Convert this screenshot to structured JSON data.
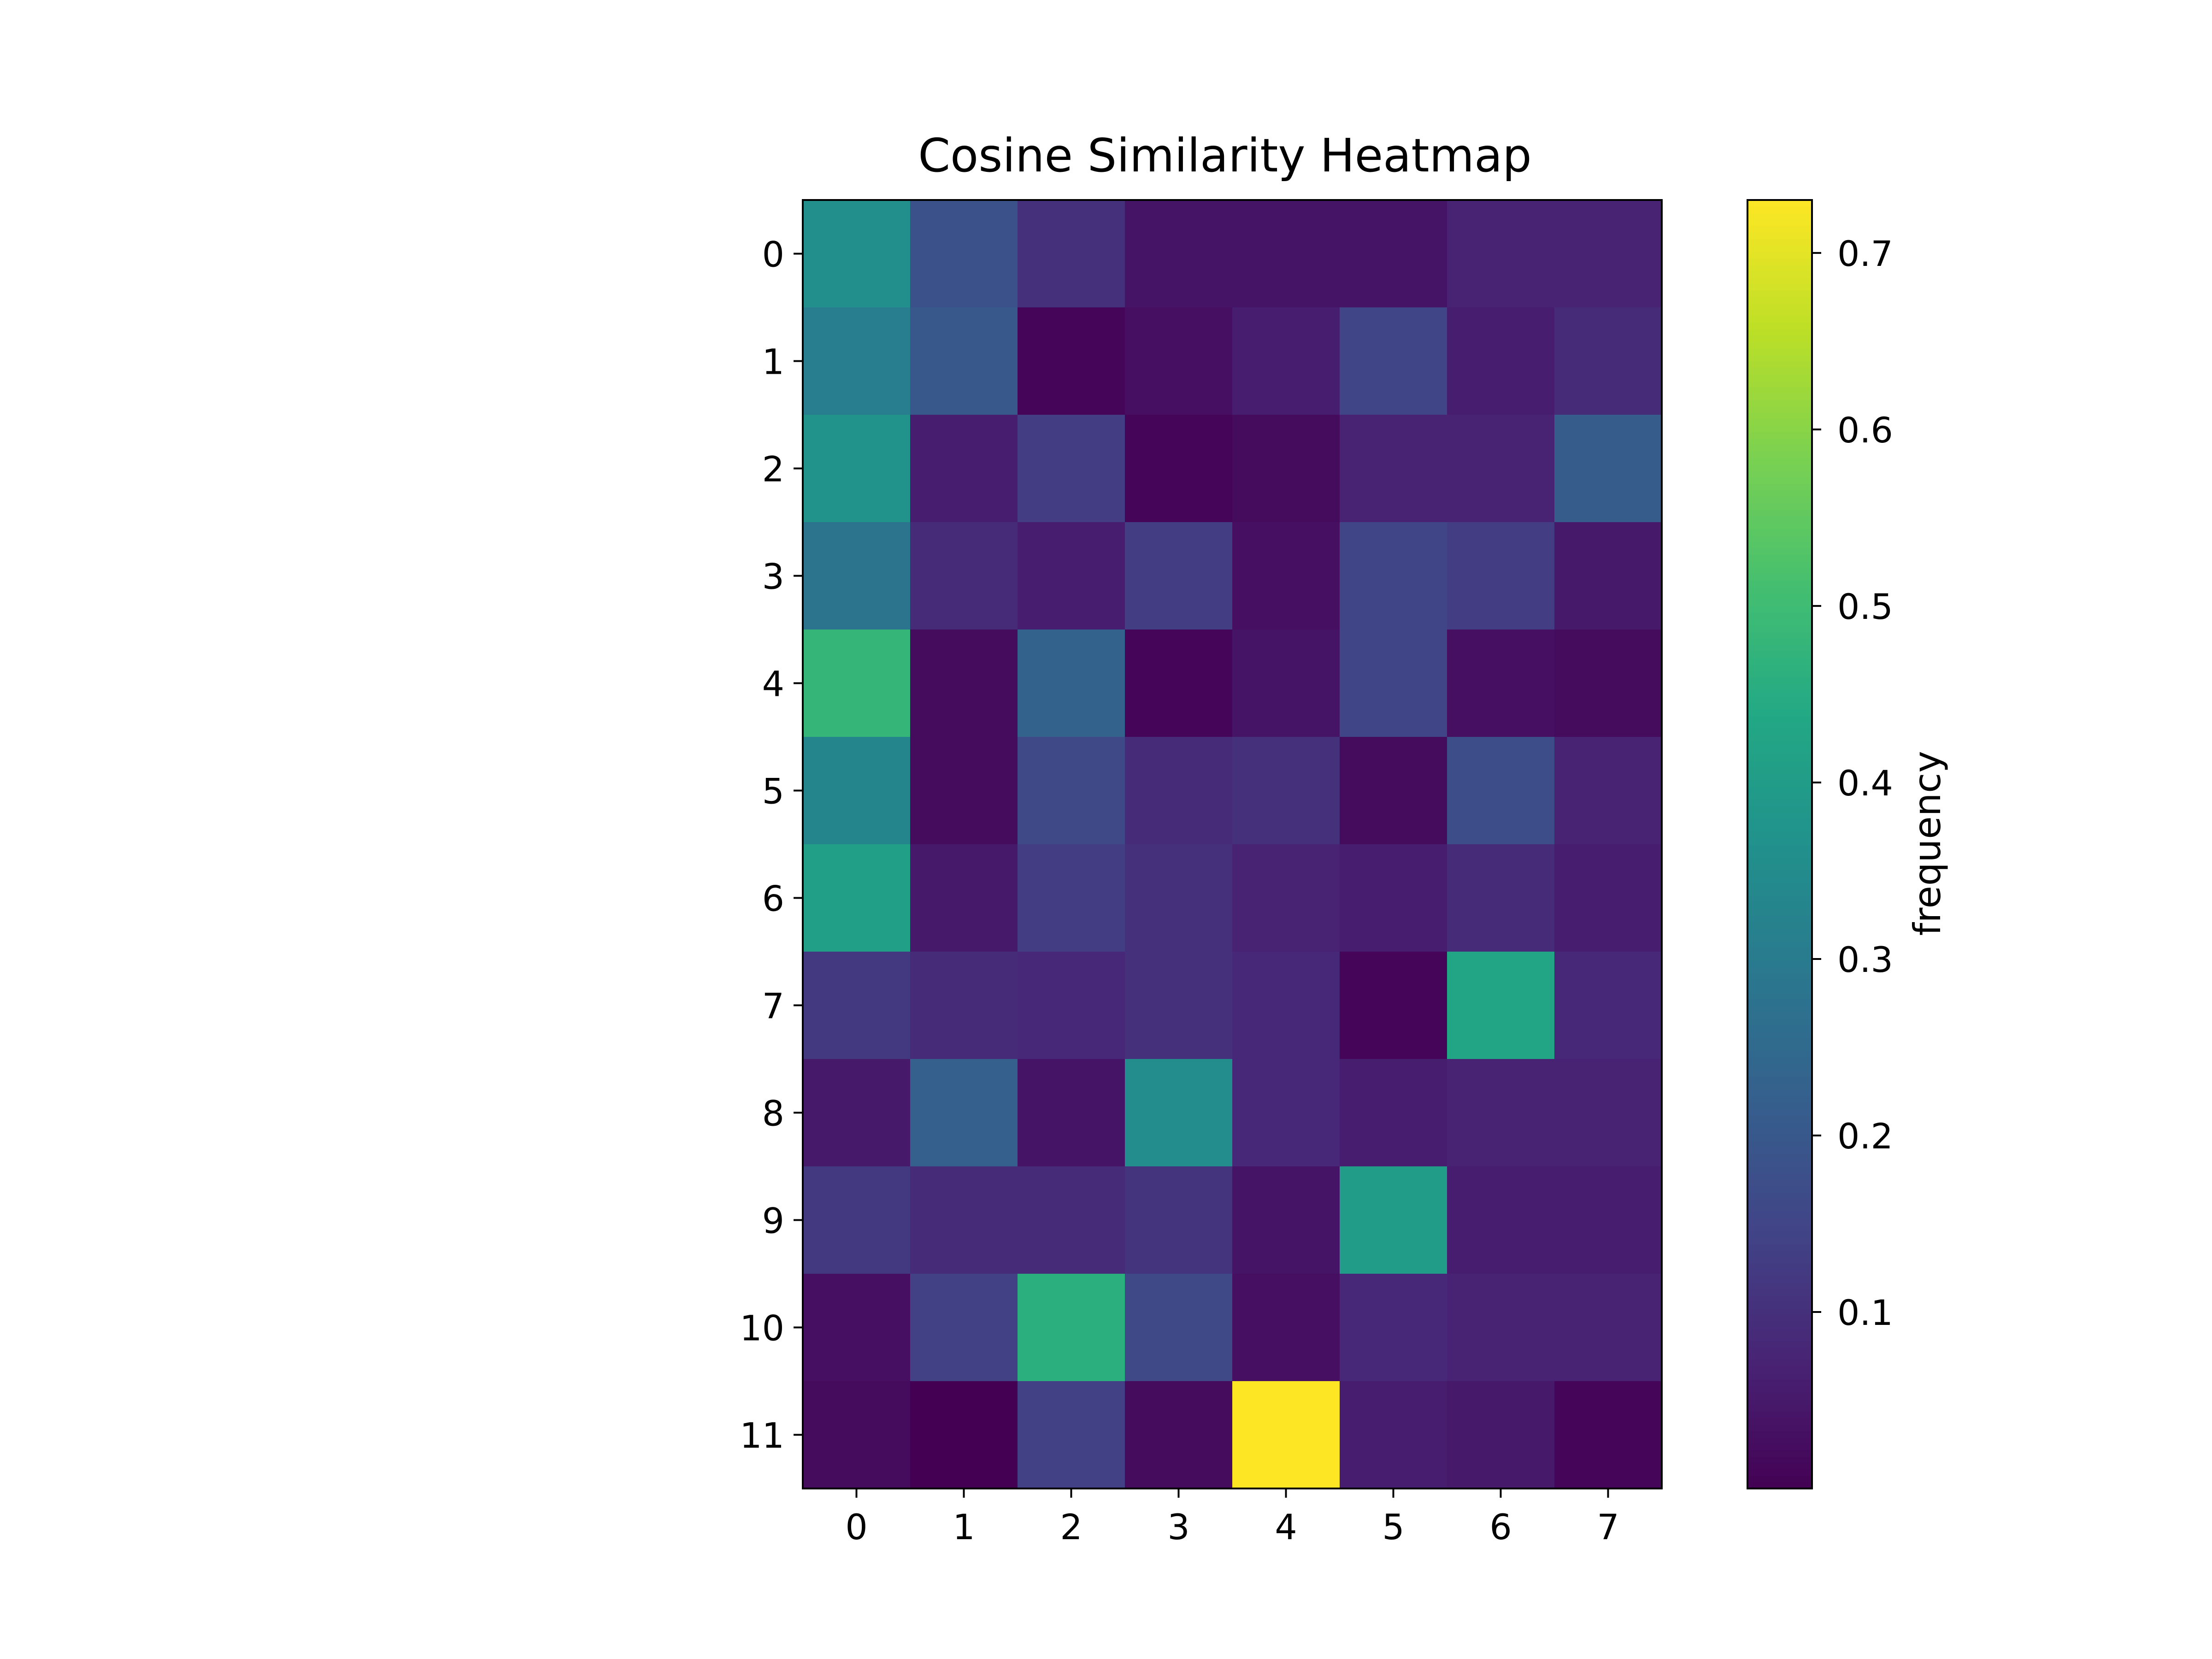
{
  "chart_data": {
    "type": "heatmap",
    "title": "Cosine Similarity Heatmap",
    "xlabel": "",
    "ylabel": "",
    "x_categories": [
      "0",
      "1",
      "2",
      "3",
      "4",
      "5",
      "6",
      "7"
    ],
    "y_categories": [
      "0",
      "1",
      "2",
      "3",
      "4",
      "5",
      "6",
      "7",
      "8",
      "9",
      "10",
      "11"
    ],
    "values": [
      [
        0.36,
        0.18,
        0.1,
        0.04,
        0.04,
        0.04,
        0.07,
        0.07
      ],
      [
        0.31,
        0.2,
        0.01,
        0.03,
        0.06,
        0.15,
        0.06,
        0.09
      ],
      [
        0.37,
        0.06,
        0.13,
        0.01,
        0.02,
        0.07,
        0.07,
        0.21
      ],
      [
        0.28,
        0.09,
        0.06,
        0.13,
        0.03,
        0.15,
        0.13,
        0.05
      ],
      [
        0.48,
        0.02,
        0.23,
        0.01,
        0.04,
        0.15,
        0.03,
        0.02
      ],
      [
        0.33,
        0.02,
        0.16,
        0.09,
        0.1,
        0.02,
        0.17,
        0.07
      ],
      [
        0.41,
        0.05,
        0.13,
        0.1,
        0.07,
        0.06,
        0.09,
        0.06
      ],
      [
        0.12,
        0.09,
        0.08,
        0.1,
        0.08,
        0.01,
        0.43,
        0.08
      ],
      [
        0.05,
        0.22,
        0.04,
        0.35,
        0.08,
        0.06,
        0.07,
        0.07
      ],
      [
        0.12,
        0.09,
        0.09,
        0.11,
        0.04,
        0.4,
        0.06,
        0.06
      ],
      [
        0.03,
        0.14,
        0.46,
        0.16,
        0.03,
        0.08,
        0.07,
        0.07
      ],
      [
        0.02,
        0.0,
        0.14,
        0.02,
        0.73,
        0.06,
        0.05,
        0.01
      ]
    ],
    "colorbar": {
      "label": "frequency",
      "min": 0.0,
      "max": 0.73,
      "ticks": [
        "0.1",
        "0.2",
        "0.3",
        "0.4",
        "0.5",
        "0.6",
        "0.7"
      ],
      "tick_values": [
        0.1,
        0.2,
        0.3,
        0.4,
        0.5,
        0.6,
        0.7
      ]
    },
    "colormap": "viridis",
    "colors": {
      "axis": "#000000",
      "background": "#ffffff"
    }
  }
}
